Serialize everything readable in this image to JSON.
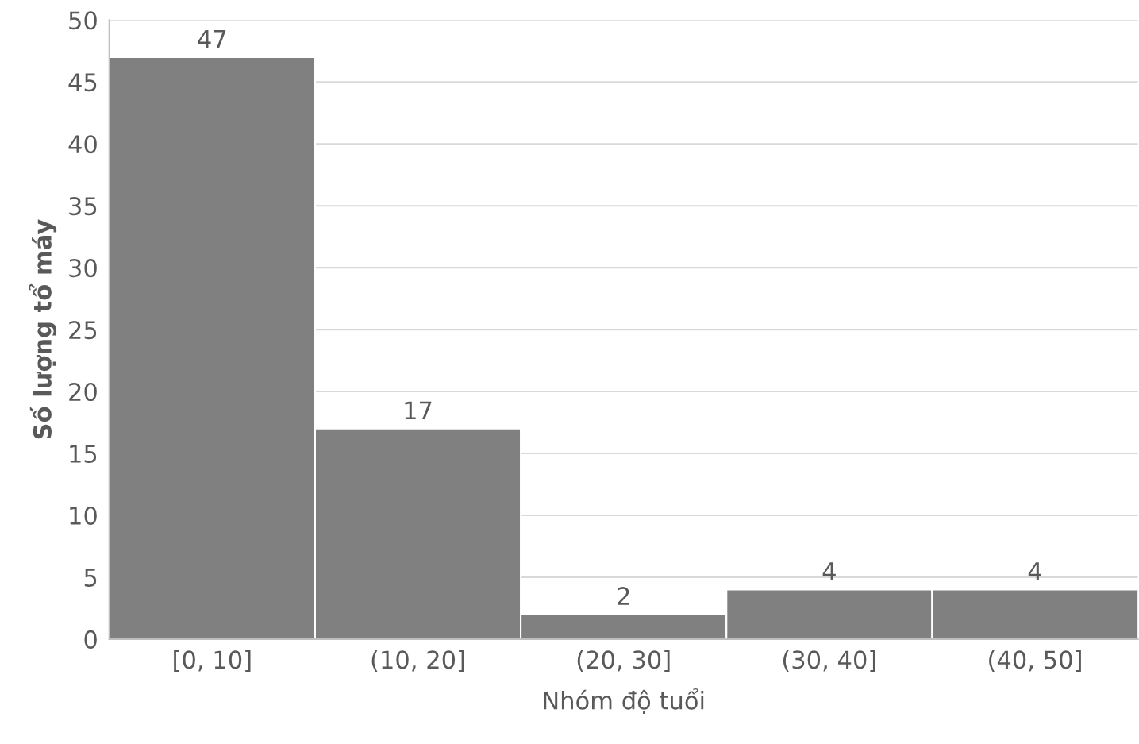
{
  "chart_data": {
    "type": "bar",
    "xlabel": "Nhóm độ tuổi",
    "ylabel": "Số lượng tổ máy",
    "categories": [
      "[0, 10]",
      "(10, 20]",
      "(20, 30]",
      "(30, 40]",
      "(40, 50]"
    ],
    "values": [
      47,
      17,
      2,
      4,
      4
    ],
    "color": "#808080",
    "ylim": [
      0,
      50
    ],
    "yticks": [
      0,
      5,
      10,
      15,
      20,
      25,
      30,
      35,
      40,
      45,
      50
    ],
    "grid": "y",
    "data_labels": true
  }
}
